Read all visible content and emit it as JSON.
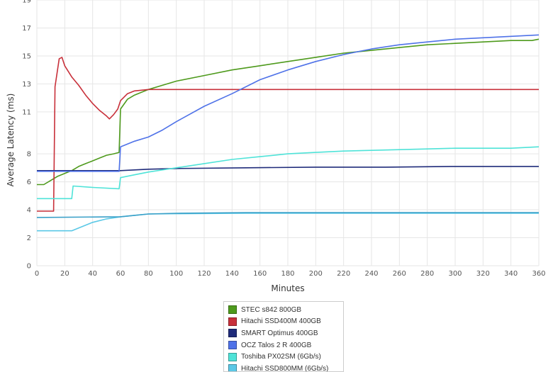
{
  "chart_data": {
    "type": "line",
    "title": "",
    "xlabel": "Minutes",
    "ylabel": "Average Latency (ms)",
    "xlim": [
      0,
      360
    ],
    "ylim": [
      0,
      19
    ],
    "x_ticks": [
      0,
      20,
      40,
      60,
      80,
      100,
      120,
      140,
      160,
      180,
      200,
      220,
      240,
      260,
      280,
      300,
      320,
      340,
      360
    ],
    "y_ticks": [
      0,
      2,
      4,
      6,
      8,
      11,
      13,
      15,
      17,
      19
    ],
    "grid": true,
    "legend_position": "bottom",
    "series": [
      {
        "name": "STEC s842 800GB",
        "color": "#4e9a1c",
        "x": [
          0,
          5,
          10,
          15,
          20,
          25,
          30,
          35,
          40,
          45,
          50,
          55,
          59,
          60,
          65,
          70,
          80,
          90,
          100,
          120,
          140,
          160,
          180,
          200,
          220,
          240,
          260,
          280,
          300,
          320,
          340,
          355,
          360
        ],
        "y": [
          5.8,
          5.8,
          6.1,
          6.4,
          6.6,
          6.8,
          7.1,
          7.3,
          7.5,
          7.7,
          7.9,
          8.0,
          8.1,
          11.2,
          11.9,
          12.2,
          12.6,
          12.9,
          13.2,
          13.6,
          14.0,
          14.3,
          14.6,
          14.9,
          15.2,
          15.4,
          15.6,
          15.8,
          15.9,
          16.0,
          16.1,
          16.1,
          16.2
        ]
      },
      {
        "name": "Hitachi SSD400M 400GB",
        "color": "#c8303a",
        "x": [
          0,
          12,
          13,
          16,
          18,
          20,
          25,
          30,
          35,
          40,
          45,
          50,
          52,
          55,
          58,
          60,
          65,
          70,
          80,
          100,
          150,
          200,
          250,
          300,
          360
        ],
        "y": [
          3.9,
          3.9,
          12.8,
          14.8,
          14.9,
          14.3,
          13.5,
          12.9,
          12.2,
          11.6,
          11.1,
          10.7,
          10.5,
          10.8,
          11.2,
          11.8,
          12.3,
          12.5,
          12.6,
          12.6,
          12.6,
          12.6,
          12.6,
          12.6,
          12.6
        ]
      },
      {
        "name": "SMART Optimus 400GB",
        "color": "#1f2b7a",
        "x": [
          0,
          60,
          80,
          100,
          150,
          200,
          250,
          300,
          360
        ],
        "y": [
          6.8,
          6.8,
          6.9,
          6.95,
          7.0,
          7.05,
          7.05,
          7.1,
          7.1
        ]
      },
      {
        "name": "OCZ Talos 2 R 400GB",
        "color": "#4f72e8",
        "x": [
          0,
          59,
          60,
          70,
          80,
          90,
          100,
          120,
          140,
          160,
          180,
          200,
          220,
          240,
          260,
          280,
          300,
          320,
          340,
          360
        ],
        "y": [
          6.75,
          6.75,
          8.5,
          8.9,
          9.2,
          9.7,
          10.3,
          11.4,
          12.3,
          13.3,
          14.0,
          14.6,
          15.1,
          15.5,
          15.8,
          16.0,
          16.2,
          16.3,
          16.4,
          16.5
        ]
      },
      {
        "name": "Toshiba PX02SM (6Gb/s)",
        "color": "#4fe3d8",
        "x": [
          0,
          25,
          26,
          40,
          59,
          60,
          70,
          80,
          100,
          120,
          140,
          160,
          180,
          200,
          220,
          240,
          260,
          280,
          300,
          320,
          340,
          360
        ],
        "y": [
          4.8,
          4.8,
          5.7,
          5.6,
          5.5,
          6.3,
          6.5,
          6.7,
          7.0,
          7.3,
          7.6,
          7.8,
          8.0,
          8.1,
          8.2,
          8.25,
          8.3,
          8.35,
          8.4,
          8.4,
          8.4,
          8.5
        ]
      },
      {
        "name": "Hitachi SSD800MM (6Gb/s)",
        "color": "#5bc8e6",
        "x": [
          0,
          25,
          30,
          40,
          50,
          60,
          70,
          80,
          100,
          150,
          200,
          250,
          300,
          360
        ],
        "y": [
          2.5,
          2.5,
          2.7,
          3.1,
          3.35,
          3.5,
          3.6,
          3.7,
          3.72,
          3.75,
          3.75,
          3.75,
          3.75,
          3.75
        ]
      },
      {
        "name": "",
        "color": "#3aa0c8",
        "x": [
          0,
          60,
          80,
          100,
          150,
          200,
          250,
          300,
          360
        ],
        "y": [
          3.45,
          3.5,
          3.7,
          3.75,
          3.8,
          3.8,
          3.8,
          3.8,
          3.8
        ]
      }
    ]
  }
}
